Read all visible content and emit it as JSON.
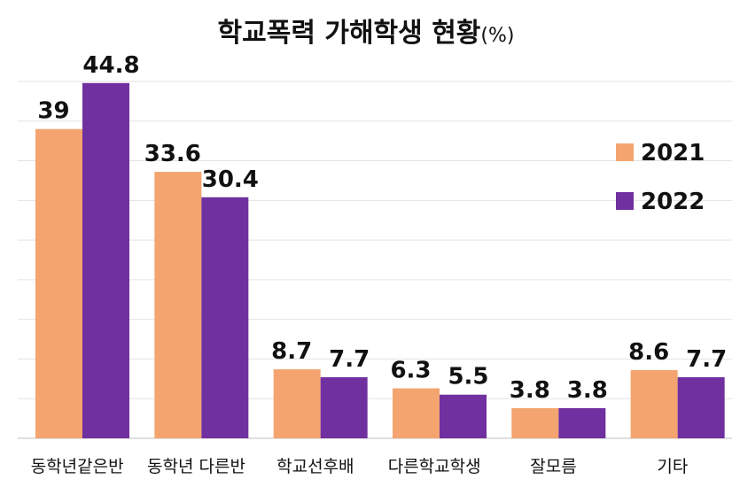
{
  "chart_data": {
    "type": "bar",
    "title": "학교폭력 가해학생 현황",
    "title_unit": "(%)",
    "categories": [
      "동학년같은반",
      "동학년 다른반",
      "학교선후배",
      "다른학교학생",
      "잘모름",
      "기타"
    ],
    "series": [
      {
        "name": "2021",
        "values": [
          39,
          33.6,
          8.7,
          6.3,
          3.8,
          8.6
        ],
        "color": "#F4A46F"
      },
      {
        "name": "2022",
        "values": [
          44.8,
          30.4,
          7.7,
          5.5,
          3.8,
          7.7
        ],
        "color": "#7030A0"
      }
    ],
    "value_labels": [
      [
        "39",
        "33.6",
        "8.7",
        "6.3",
        "3.8",
        "8.6"
      ],
      [
        "44.8",
        "30.4",
        "7.7",
        "5.5",
        "3.8",
        "7.7"
      ]
    ],
    "ylim": [
      0,
      45
    ],
    "grid": true,
    "legend_position": "right"
  }
}
